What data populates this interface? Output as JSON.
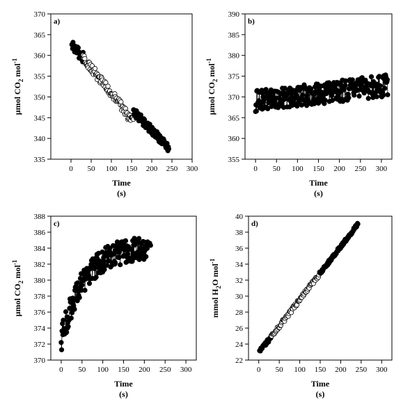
{
  "chart_data": [
    {
      "type": "scatter",
      "panel_label": "a)",
      "xlabel": "Time",
      "xunit": "(s)",
      "ylabel_parts": [
        "μmol CO",
        "2",
        " mol",
        "-1"
      ],
      "xlim": [
        -50,
        300
      ],
      "ylim": [
        335,
        370
      ],
      "xticks": [
        0,
        50,
        100,
        150,
        200,
        250,
        300
      ],
      "yticks": [
        335,
        340,
        345,
        350,
        355,
        360,
        365,
        370
      ],
      "series": [
        {
          "marker": "filled",
          "color": "#000000",
          "range": [
            2,
            30
          ],
          "intercept": 362.5,
          "slope": -0.1,
          "noise": 1.3,
          "step": 1,
          "connect": true
        },
        {
          "marker": "open",
          "color": "#000000",
          "range": [
            30,
            155
          ],
          "intercept": 363.5,
          "slope": -0.127,
          "noise": 1.1,
          "step": 1.4,
          "connect": false
        },
        {
          "marker": "filled",
          "color": "#000000",
          "range": [
            155,
            242
          ],
          "intercept": 362.0,
          "slope": -0.1,
          "noise": 1.0,
          "step": 1,
          "connect": true
        }
      ]
    },
    {
      "type": "scatter",
      "panel_label": "b)",
      "xlabel": "Time",
      "xunit": "(s)",
      "ylabel_parts": [
        "μmol CO",
        "2",
        " mol",
        "-1"
      ],
      "xlim": [
        -25,
        325
      ],
      "ylim": [
        355,
        390
      ],
      "xticks": [
        0,
        50,
        100,
        150,
        200,
        250,
        300
      ],
      "yticks": [
        355,
        360,
        365,
        370,
        375,
        380,
        385,
        390
      ],
      "series": [
        {
          "marker": "filled",
          "color": "#000000",
          "range": [
            0,
            315
          ],
          "intercept": 369.0,
          "slope": 0.012,
          "noise": 2.6,
          "step": 1,
          "connect": true
        }
      ]
    },
    {
      "type": "scatter",
      "panel_label": "c)",
      "xlabel": "Time",
      "xunit": "(s)",
      "ylabel_parts": [
        "μmol CO",
        "2",
        " mol",
        "-1"
      ],
      "xlim": [
        -25,
        325
      ],
      "ylim": [
        370,
        388
      ],
      "xticks": [
        0,
        50,
        100,
        150,
        200,
        250,
        300
      ],
      "yticks": [
        370,
        372,
        374,
        376,
        378,
        380,
        382,
        384,
        386,
        388
      ],
      "series": [
        {
          "marker": "filled",
          "color": "#000000",
          "range": [
            0,
            215
          ],
          "curve": "exp",
          "y0": 372.5,
          "y_inf": 384.3,
          "tau": 55,
          "noise": 1.5,
          "step": 1,
          "connect": true
        }
      ]
    },
    {
      "type": "scatter",
      "panel_label": "d)",
      "xlabel": "Time",
      "xunit": "(s)",
      "ylabel_parts": [
        "mmol H",
        "2",
        "O mol",
        "-1"
      ],
      "xlim": [
        -25,
        325
      ],
      "ylim": [
        22,
        40
      ],
      "xticks": [
        0,
        50,
        100,
        150,
        200,
        250,
        300
      ],
      "yticks": [
        22,
        24,
        26,
        28,
        30,
        32,
        34,
        36,
        38,
        40
      ],
      "series": [
        {
          "marker": "filled",
          "color": "#000000",
          "range": [
            2,
            30
          ],
          "intercept": 22.9,
          "slope": 0.0665,
          "noise": 0.25,
          "step": 1,
          "connect": true
        },
        {
          "marker": "open",
          "color": "#000000",
          "range": [
            30,
            150
          ],
          "intercept": 22.9,
          "slope": 0.0665,
          "noise": 0.25,
          "step": 1.5,
          "connect": false
        },
        {
          "marker": "filled",
          "color": "#000000",
          "range": [
            150,
            242
          ],
          "intercept": 22.9,
          "slope": 0.0665,
          "noise": 0.2,
          "step": 1,
          "connect": true
        }
      ]
    }
  ]
}
